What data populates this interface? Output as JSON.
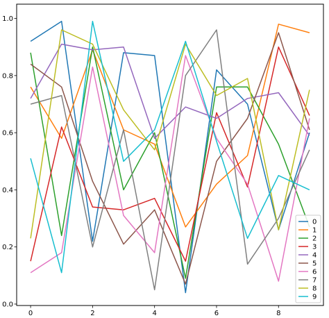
{
  "chart_data": {
    "type": "line",
    "title": "",
    "xlabel": "",
    "ylabel": "",
    "x": [
      0,
      1,
      2,
      3,
      4,
      5,
      6,
      7,
      8,
      9
    ],
    "xlim": [
      -0.45,
      9.45
    ],
    "ylim": [
      -0.005,
      1.05
    ],
    "xticks": [
      "0",
      "2",
      "4",
      "6",
      "8"
    ],
    "yticks": [
      "0.0",
      "0.2",
      "0.4",
      "0.6",
      "0.8",
      "1.0"
    ],
    "grid": false,
    "legend_position": "lower-right",
    "series": [
      {
        "name": "0",
        "color": "#1f77b4",
        "values": [
          0.92,
          0.99,
          0.22,
          0.88,
          0.87,
          0.04,
          0.82,
          0.7,
          0.26,
          0.6
        ]
      },
      {
        "name": "1",
        "color": "#ff7f0e",
        "values": [
          0.76,
          0.58,
          0.89,
          0.61,
          0.56,
          0.27,
          0.42,
          0.52,
          0.98,
          0.95
        ]
      },
      {
        "name": "2",
        "color": "#2ca02c",
        "values": [
          0.88,
          0.24,
          0.9,
          0.4,
          0.6,
          0.09,
          0.76,
          0.76,
          0.56,
          0.27
        ]
      },
      {
        "name": "3",
        "color": "#d62728",
        "values": [
          0.15,
          0.62,
          0.34,
          0.33,
          0.37,
          0.15,
          0.67,
          0.41,
          0.9,
          0.66
        ]
      },
      {
        "name": "4",
        "color": "#9467bd",
        "values": [
          0.72,
          0.91,
          0.89,
          0.9,
          0.58,
          0.69,
          0.65,
          0.72,
          0.74,
          0.59
        ]
      },
      {
        "name": "5",
        "color": "#8c564b",
        "values": [
          0.84,
          0.76,
          0.43,
          0.21,
          0.33,
          0.07,
          0.5,
          0.65,
          0.95,
          0.61
        ]
      },
      {
        "name": "6",
        "color": "#e377c2",
        "values": [
          0.11,
          0.18,
          0.83,
          0.31,
          0.18,
          0.87,
          0.58,
          0.42,
          0.08,
          0.65
        ]
      },
      {
        "name": "7",
        "color": "#7f7f7f",
        "values": [
          0.7,
          0.73,
          0.2,
          0.61,
          0.05,
          0.8,
          0.96,
          0.14,
          0.3,
          0.54
        ]
      },
      {
        "name": "8",
        "color": "#bcbd22",
        "values": [
          0.23,
          0.96,
          0.91,
          0.68,
          0.54,
          0.91,
          0.73,
          0.79,
          0.26,
          0.75
        ]
      },
      {
        "name": "9",
        "color": "#17becf",
        "values": [
          0.51,
          0.11,
          0.99,
          0.5,
          0.61,
          0.92,
          0.57,
          0.23,
          0.45,
          0.4
        ]
      }
    ]
  }
}
